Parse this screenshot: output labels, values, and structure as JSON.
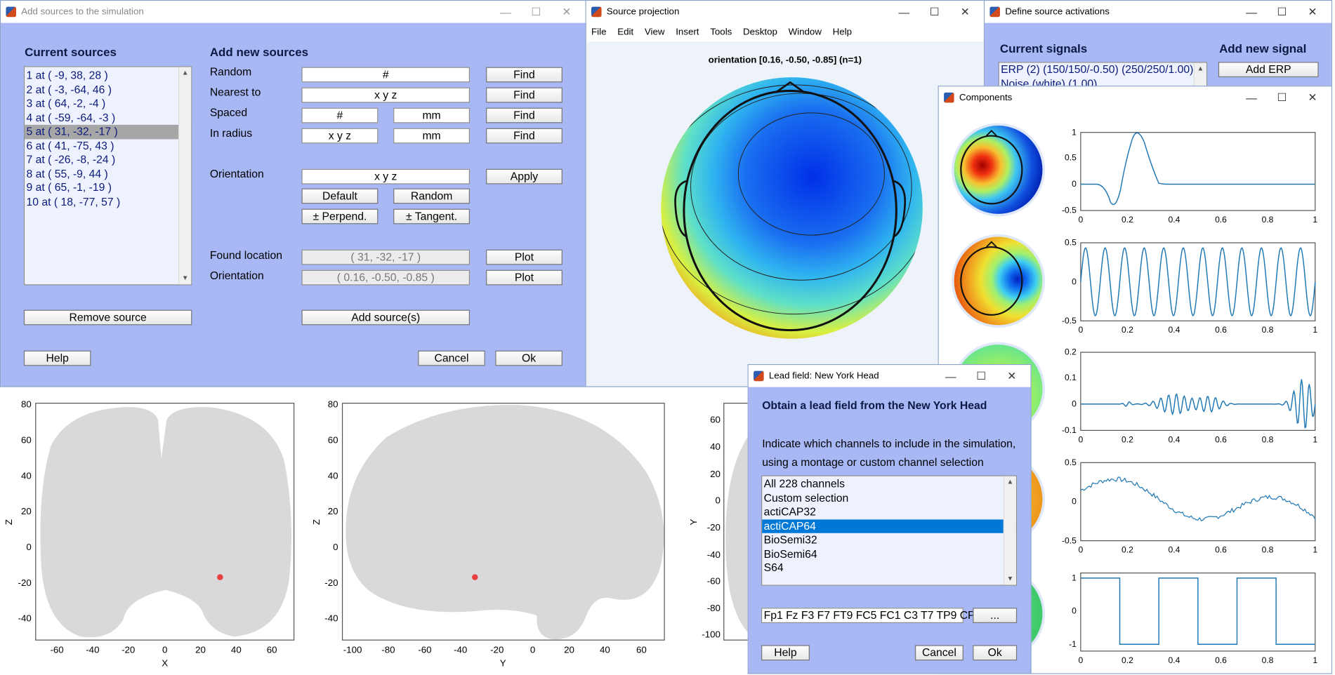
{
  "windows": {
    "add_sources": {
      "title": "Add sources to the simulation",
      "current_sources_header": "Current sources",
      "add_new_header": "Add new sources",
      "sources": [
        "1 at ( -9, 38, 28 )",
        "2 at ( -3, -64, 46 )",
        "3 at ( 64, -2, -4 )",
        "4 at ( -59, -64, -3 )",
        "5 at ( 31, -32, -17 )",
        "6 at ( 41, -75, 43 )",
        "7 at ( -26, -8, -24 )",
        "8 at ( 55, -9, 44 )",
        "9 at ( 65, -1, -19 )",
        "10 at ( 18, -77, 57 )"
      ],
      "selected_index": 4,
      "labels": {
        "random": "Random",
        "nearest": "Nearest to",
        "spaced": "Spaced",
        "radius": "In radius",
        "orientation": "Orientation",
        "found_location": "Found location",
        "orientation2": "Orientation"
      },
      "fields": {
        "random": "#",
        "nearest": "x y z",
        "spaced_n": "#",
        "spaced_unit": "mm",
        "radius_xyz": "x y z",
        "radius_unit": "mm",
        "orientation": "x y z",
        "found_location": "( 31, -32, -17 )",
        "found_orientation": "( 0.16, -0.50, -0.85 )"
      },
      "buttons": {
        "find": "Find",
        "apply": "Apply",
        "default": "Default",
        "random": "Random",
        "perpend": "± Perpend.",
        "tangent": "± Tangent.",
        "plot": "Plot",
        "remove": "Remove source",
        "add": "Add source(s)",
        "help": "Help",
        "cancel": "Cancel",
        "ok": "Ok"
      }
    },
    "source_projection": {
      "title": "Source projection",
      "menu": [
        "File",
        "Edit",
        "View",
        "Insert",
        "Tools",
        "Desktop",
        "Window",
        "Help"
      ],
      "plot_title": "orientation [0.16, -0.50, -0.85] (n=1)"
    },
    "define_activations": {
      "title": "Define source activations",
      "current_signals_header": "Current signals",
      "add_new_header": "Add new signal",
      "signals": [
        "ERP (2) (150/150/-0.50) (250/250/1.00)",
        "Noise (white) (1.00)"
      ],
      "add_erp": "Add ERP"
    },
    "components": {
      "title": "Components",
      "plots": [
        {
          "yticks": [
            "1",
            "0.5",
            "0",
            "-0.5"
          ]
        },
        {
          "yticks": [
            "0.5",
            "0",
            "-0.5"
          ]
        },
        {
          "yticks": [
            "0.2",
            "0.1",
            "0",
            "-0.1"
          ]
        },
        {
          "yticks": [
            "0.5",
            "0",
            "-0.5"
          ]
        },
        {
          "yticks": [
            "1",
            "0",
            "-1"
          ]
        }
      ],
      "xticks": [
        "0",
        "0.2",
        "0.4",
        "0.6",
        "0.8",
        "1"
      ]
    },
    "lead_field": {
      "title": "Lead field: New York Head",
      "header": "Obtain a lead field from the New York Head",
      "desc1": "Indicate which channels to include in the simulation,",
      "desc2": "using a montage or custom channel selection",
      "options": [
        "All 228 channels",
        "Custom selection",
        "actiCAP32",
        "actiCAP64",
        "BioSemi32",
        "BioSemi64",
        "S64"
      ],
      "selected_index": 3,
      "channels": "Fp1 Fz F3 F7 FT9 FC5 FC1 C3 T7 TP9 CP",
      "dots": "...",
      "help": "Help",
      "cancel": "Cancel",
      "ok": "Ok"
    }
  },
  "brain_plots": [
    {
      "xlabel": "X",
      "ylabel": "Z",
      "xticks": [
        "-60",
        "-40",
        "-20",
        "0",
        "20",
        "40",
        "60"
      ],
      "yticks": [
        "80",
        "60",
        "40",
        "20",
        "0",
        "-20",
        "-40"
      ]
    },
    {
      "xlabel": "Y",
      "ylabel": "Z",
      "xticks": [
        "-100",
        "-80",
        "-60",
        "-40",
        "-20",
        "0",
        "20",
        "40",
        "60"
      ],
      "yticks": [
        "80",
        "60",
        "40",
        "20",
        "0",
        "-20",
        "-40"
      ]
    },
    {
      "xlabel": "",
      "ylabel": "Y",
      "yticks": [
        "60",
        "40",
        "20",
        "0",
        "-20",
        "-40",
        "-60",
        "-80",
        "-100"
      ]
    }
  ],
  "colors": {
    "panel_blue": "#a7b8f5",
    "source_marker": "#e84040",
    "brain_gray": "#d9d9d9",
    "selection_blue": "#0078d7"
  }
}
